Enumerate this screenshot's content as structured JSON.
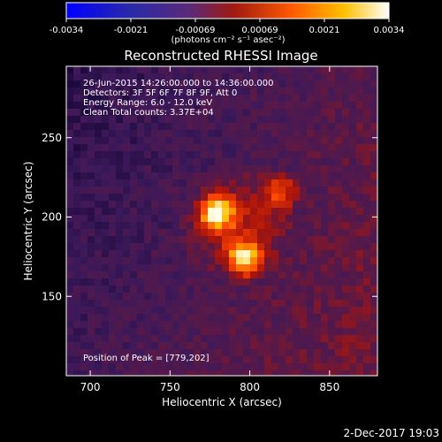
{
  "chart_data": {
    "type": "heatmap",
    "title": "Reconstructed RHESSI Image",
    "xlabel": "Heliocentric X (arcsec)",
    "ylabel": "Heliocentric Y (arcsec)",
    "xlim": [
      685,
      880
    ],
    "ylim": [
      100,
      295
    ],
    "x_ticks": [
      700,
      750,
      800,
      850
    ],
    "y_ticks": [
      150,
      200,
      250
    ],
    "colorbar": {
      "colormap": "hot (black-blue-purple-red-orange-yellow-white)",
      "range": [
        -0.0034,
        0.0034
      ],
      "ticks": [
        "-0.0034",
        "-0.0021",
        "-0.00069",
        "0.00069",
        "0.0021",
        "0.0034"
      ],
      "units_label": "(photons cm⁻² s⁻¹ asec⁻²)",
      "colors": [
        "#0000ff",
        "#2a2aa8",
        "#5a2a7a",
        "#a01a10",
        "#ff5a00",
        "#ffc000",
        "#ffffff"
      ]
    },
    "sources": [
      {
        "x": 779,
        "y": 202,
        "relative_intensity": 1.0
      },
      {
        "x": 797,
        "y": 174,
        "relative_intensity": 0.9
      },
      {
        "x": 820,
        "y": 217,
        "relative_intensity": 0.55
      }
    ],
    "annotations": [
      "26-Jun-2015 14:26:00.000 to 14:36:00.000",
      "Detectors: 3F 5F 6F 7F 8F 9F, Att 0",
      "Energy Range: 6.0 - 12.0 keV",
      "Clean     Total counts: 3.37E+04",
      "Position of Peak = [779,202]"
    ],
    "footer_date": "2-Dec-2017 19:03"
  }
}
